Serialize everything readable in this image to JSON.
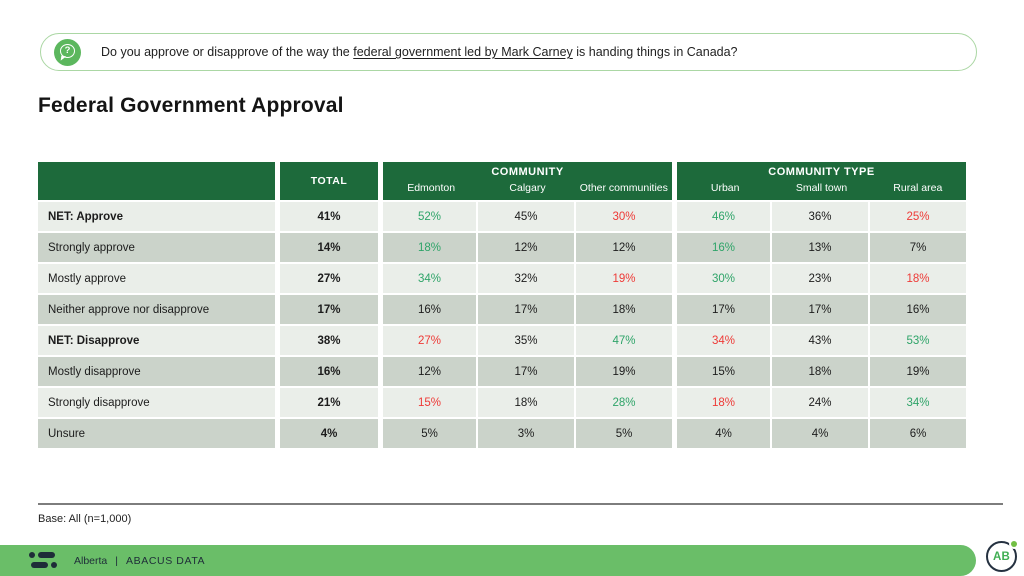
{
  "title": "Federal Government Approval",
  "question": {
    "prefix": "Do you approve or disapprove of the way the ",
    "underlined": "federal government led by Mark Carney",
    "suffix": " is handing things in Canada?",
    "icon_glyph": "?"
  },
  "table": {
    "total_header": "TOTAL",
    "groups": [
      {
        "label": "COMMUNITY",
        "columns": [
          "Edmonton",
          "Calgary",
          "Other communities"
        ]
      },
      {
        "label": "COMMUNITY TYPE",
        "columns": [
          "Urban",
          "Small town",
          "Rural area"
        ]
      }
    ],
    "rows": [
      {
        "label": "NET: Approve",
        "bold": true,
        "total": "41%",
        "cells": [
          {
            "v": "52%",
            "c": "green"
          },
          {
            "v": "45%",
            "c": "black"
          },
          {
            "v": "30%",
            "c": "red"
          },
          {
            "v": "46%",
            "c": "green"
          },
          {
            "v": "36%",
            "c": "black"
          },
          {
            "v": "25%",
            "c": "red"
          }
        ]
      },
      {
        "label": "Strongly approve",
        "bold": false,
        "total": "14%",
        "cells": [
          {
            "v": "18%",
            "c": "green"
          },
          {
            "v": "12%",
            "c": "black"
          },
          {
            "v": "12%",
            "c": "black"
          },
          {
            "v": "16%",
            "c": "green"
          },
          {
            "v": "13%",
            "c": "black"
          },
          {
            "v": "7%",
            "c": "black"
          }
        ]
      },
      {
        "label": "Mostly approve",
        "bold": false,
        "total": "27%",
        "cells": [
          {
            "v": "34%",
            "c": "green"
          },
          {
            "v": "32%",
            "c": "black"
          },
          {
            "v": "19%",
            "c": "red"
          },
          {
            "v": "30%",
            "c": "green"
          },
          {
            "v": "23%",
            "c": "black"
          },
          {
            "v": "18%",
            "c": "red"
          }
        ]
      },
      {
        "label": "Neither approve nor disapprove",
        "bold": false,
        "total": "17%",
        "cells": [
          {
            "v": "16%",
            "c": "black"
          },
          {
            "v": "17%",
            "c": "black"
          },
          {
            "v": "18%",
            "c": "black"
          },
          {
            "v": "17%",
            "c": "black"
          },
          {
            "v": "17%",
            "c": "black"
          },
          {
            "v": "16%",
            "c": "black"
          }
        ]
      },
      {
        "label": "NET: Disapprove",
        "bold": true,
        "total": "38%",
        "cells": [
          {
            "v": "27%",
            "c": "red"
          },
          {
            "v": "35%",
            "c": "black"
          },
          {
            "v": "47%",
            "c": "green"
          },
          {
            "v": "34%",
            "c": "red"
          },
          {
            "v": "43%",
            "c": "black"
          },
          {
            "v": "53%",
            "c": "green"
          }
        ]
      },
      {
        "label": "Mostly disapprove",
        "bold": false,
        "total": "16%",
        "cells": [
          {
            "v": "12%",
            "c": "black"
          },
          {
            "v": "17%",
            "c": "black"
          },
          {
            "v": "19%",
            "c": "black"
          },
          {
            "v": "15%",
            "c": "black"
          },
          {
            "v": "18%",
            "c": "black"
          },
          {
            "v": "19%",
            "c": "black"
          }
        ]
      },
      {
        "label": "Strongly disapprove",
        "bold": false,
        "total": "21%",
        "cells": [
          {
            "v": "15%",
            "c": "red"
          },
          {
            "v": "18%",
            "c": "black"
          },
          {
            "v": "28%",
            "c": "green"
          },
          {
            "v": "18%",
            "c": "red"
          },
          {
            "v": "24%",
            "c": "black"
          },
          {
            "v": "34%",
            "c": "green"
          }
        ]
      },
      {
        "label": "Unsure",
        "bold": false,
        "total": "4%",
        "cells": [
          {
            "v": "5%",
            "c": "black"
          },
          {
            "v": "3%",
            "c": "black"
          },
          {
            "v": "5%",
            "c": "black"
          },
          {
            "v": "4%",
            "c": "black"
          },
          {
            "v": "4%",
            "c": "black"
          },
          {
            "v": "6%",
            "c": "black"
          }
        ]
      }
    ]
  },
  "chart_data": {
    "type": "table",
    "title": "Federal Government Approval",
    "columns": [
      "TOTAL",
      "Edmonton",
      "Calgary",
      "Other communities",
      "Urban",
      "Small town",
      "Rural area"
    ],
    "rows": [
      {
        "label": "NET: Approve",
        "values": [
          "41%",
          "52%",
          "45%",
          "30%",
          "46%",
          "36%",
          "25%"
        ]
      },
      {
        "label": "Strongly approve",
        "values": [
          "14%",
          "18%",
          "12%",
          "12%",
          "16%",
          "13%",
          "7%"
        ]
      },
      {
        "label": "Mostly approve",
        "values": [
          "27%",
          "34%",
          "32%",
          "19%",
          "30%",
          "23%",
          "18%"
        ]
      },
      {
        "label": "Neither approve nor disapprove",
        "values": [
          "17%",
          "16%",
          "17%",
          "18%",
          "17%",
          "17%",
          "16%"
        ]
      },
      {
        "label": "NET: Disapprove",
        "values": [
          "38%",
          "27%",
          "35%",
          "47%",
          "34%",
          "43%",
          "53%"
        ]
      },
      {
        "label": "Mostly disapprove",
        "values": [
          "16%",
          "12%",
          "17%",
          "19%",
          "15%",
          "18%",
          "19%"
        ]
      },
      {
        "label": "Strongly disapprove",
        "values": [
          "21%",
          "15%",
          "18%",
          "28%",
          "18%",
          "24%",
          "34%"
        ]
      },
      {
        "label": "Unsure",
        "values": [
          "4%",
          "5%",
          "3%",
          "5%",
          "4%",
          "4%",
          "6%"
        ]
      }
    ]
  },
  "base_note": "Base: All (n=1,000)",
  "footer": {
    "region": "Alberta",
    "separator": "|",
    "brand": "ABACUS DATA",
    "badge": "AB"
  },
  "colors": {
    "header_green": "#1d6a3b",
    "row_light": "#eaeee9",
    "row_dark": "#cbd3ca",
    "positive_green": "#2fa469",
    "negative_red": "#ee3a37",
    "footer_green": "#6abe68",
    "navy": "#1e2c38",
    "pill_border": "#abd7a4"
  }
}
